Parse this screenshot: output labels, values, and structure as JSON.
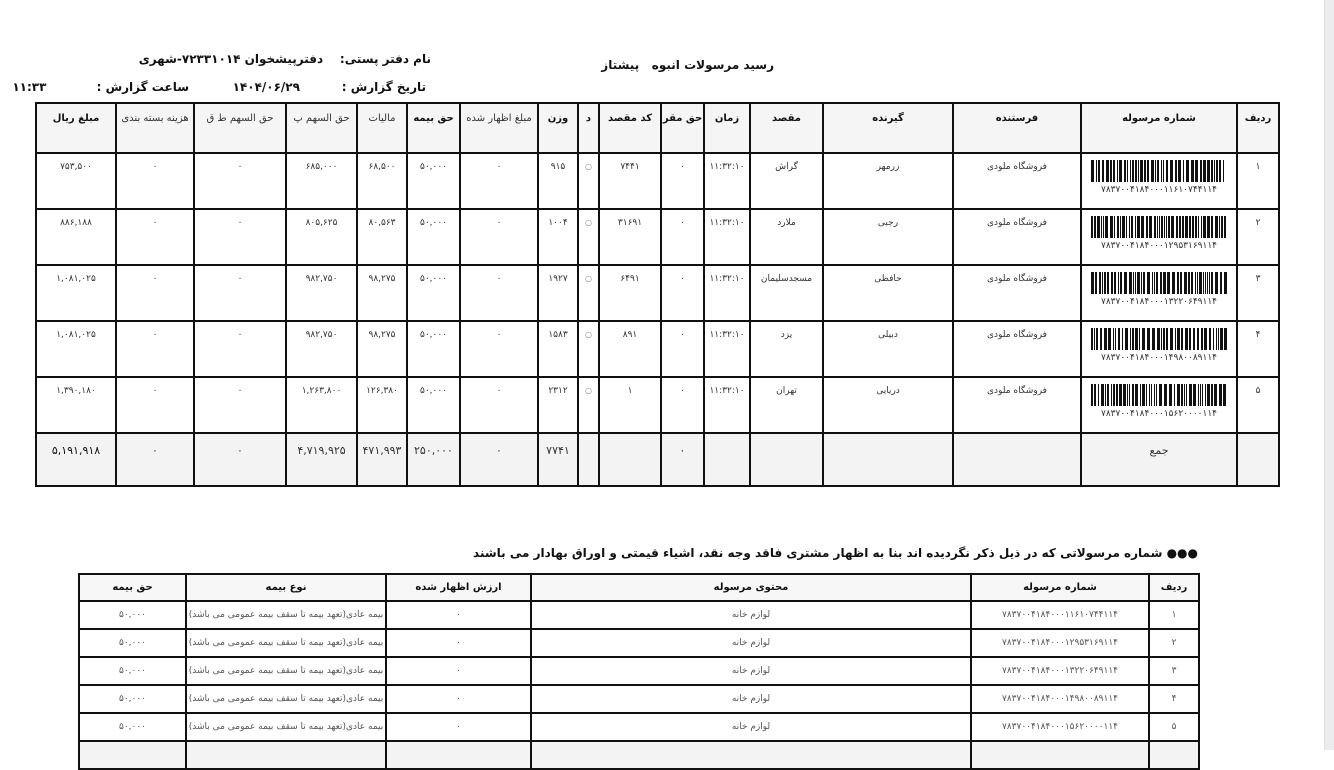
{
  "report": {
    "title": "رسید مرسولات انبوه",
    "service": "پیشتاز",
    "office_label": "نام دفتر پستی:",
    "office_value": "دفترپیشخوان ۷۲۳۳۱۰۱۴-شهری",
    "date_label": "تاریخ گزارش :",
    "date_value": "۱۴۰۴/۰۶/۲۹",
    "time_label": "ساعت گزارش :",
    "time_value": "۱۱:۳۳"
  },
  "table1": {
    "headers": [
      "ردیف",
      "شماره مرسوله",
      "فرستنده",
      "گیرنده",
      "مقصد",
      "زمان",
      "حق مقر",
      "کد مقصد",
      "د",
      "وزن",
      "مبلغ اظهار شده",
      "حق بیمه",
      "مالیات",
      "حق السهم پ",
      "حق السهم ط ق",
      "هزینه بسته بندی",
      "مبلغ ریال"
    ],
    "rows": [
      [
        "۱",
        "۷۸۳۷۰۰۴۱۸۴۰۰۰۱۱۶۱۰۷۴۴۱۱۴",
        "فروشگاه ملودی",
        "زرمهر",
        "گراش",
        "۱۱:۳۲:۱۰",
        "۰",
        "۷۴۴۱",
        "○",
        "۹۱۵",
        "۰",
        "۵۰,۰۰۰",
        "۶۸,۵۰۰",
        "۶۸۵,۰۰۰",
        "۰",
        "۰",
        "۷۵۳,۵۰۰"
      ],
      [
        "۲",
        "۷۸۳۷۰۰۴۱۸۴۰۰۰۱۲۹۵۳۱۶۹۱۱۴",
        "فروشگاه ملودی",
        "رجبی",
        "ملارد",
        "۱۱:۳۲:۱۰",
        "۰",
        "۳۱۶۹۱",
        "○",
        "۱۰۰۴",
        "۰",
        "۵۰,۰۰۰",
        "۸۰,۵۶۳",
        "۸۰۵,۶۲۵",
        "۰",
        "۰",
        "۸۸۶,۱۸۸"
      ],
      [
        "۳",
        "۷۸۳۷۰۰۴۱۸۴۰۰۰۱۳۲۲۰۶۴۹۱۱۴",
        "فروشگاه ملودی",
        "حافظی",
        "مسجدسلیمان",
        "۱۱:۳۲:۱۰",
        "۰",
        "۶۴۹۱",
        "○",
        "۱۹۲۷",
        "۰",
        "۵۰,۰۰۰",
        "۹۸,۲۷۵",
        "۹۸۲,۷۵۰",
        "۰",
        "۰",
        "۱,۰۸۱,۰۲۵"
      ],
      [
        "۴",
        "۷۸۳۷۰۰۴۱۸۴۰۰۰۱۴۹۸۰۰۸۹۱۱۴",
        "فروشگاه ملودی",
        "دبیلی",
        "یزد",
        "۱۱:۳۲:۱۰",
        "۰",
        "۸۹۱",
        "○",
        "۱۵۸۳",
        "۰",
        "۵۰,۰۰۰",
        "۹۸,۲۷۵",
        "۹۸۲,۷۵۰",
        "۰",
        "۰",
        "۱,۰۸۱,۰۲۵"
      ],
      [
        "۵",
        "۷۸۳۷۰۰۴۱۸۴۰۰۰۱۵۶۲۰۰۰۰۱۱۴",
        "فروشگاه ملودی",
        "دریایی",
        "تهران",
        "۱۱:۳۲:۱۰",
        "۰",
        "۱",
        "○",
        "۲۳۱۲",
        "۰",
        "۵۰,۰۰۰",
        "۱۲۶,۳۸۰",
        "۱,۲۶۳,۸۰۰",
        "۰",
        "۰",
        "۱,۳۹۰,۱۸۰"
      ]
    ],
    "total": [
      "",
      "جمع",
      "",
      "",
      "",
      "",
      "۰",
      "",
      "",
      "۷۷۴۱",
      "۰",
      "۲۵۰,۰۰۰",
      "۴۷۱,۹۹۳",
      "۴,۷۱۹,۹۲۵",
      "۰",
      "۰",
      "۵,۱۹۱,۹۱۸"
    ]
  },
  "note": "●●● شماره مرسولاتی که در ذیل ذکر نگردیده اند بنا به اظهار مشتری فاقد وجه نقد، اشیاء قیمتی و اوراق بهادار می باشند",
  "table2": {
    "headers": [
      "ردیف",
      "شماره مرسوله",
      "محتوی مرسوله",
      "ارزش اظهار شده",
      "نوع بیمه",
      "حق بیمه"
    ],
    "rows": [
      [
        "۱",
        "۷۸۳۷۰۰۴۱۸۴۰۰۰۱۱۶۱۰۷۴۴۱۱۴",
        "لوازم خانه",
        "۰",
        "بیمه عادی(تعهد بیمه تا سقف بیمه عمومی می باشد)",
        "۵۰,۰۰۰"
      ],
      [
        "۲",
        "۷۸۳۷۰۰۴۱۸۴۰۰۰۱۲۹۵۳۱۶۹۱۱۴",
        "لوازم خانه",
        "۰",
        "بیمه عادی(تعهد بیمه تا سقف بیمه عمومی می باشد)",
        "۵۰,۰۰۰"
      ],
      [
        "۳",
        "۷۸۳۷۰۰۴۱۸۴۰۰۰۱۳۲۲۰۶۴۹۱۱۴",
        "لوازم خانه",
        "۰",
        "بیمه عادی(تعهد بیمه تا سقف بیمه عمومی می باشد)",
        "۵۰,۰۰۰"
      ],
      [
        "۴",
        "۷۸۳۷۰۰۴۱۸۴۰۰۰۱۴۹۸۰۰۸۹۱۱۴",
        "لوازم خانه",
        "۰",
        "بیمه عادی(تعهد بیمه تا سقف بیمه عمومی می باشد)",
        "۵۰,۰۰۰"
      ],
      [
        "۵",
        "۷۸۳۷۰۰۴۱۸۴۰۰۰۱۵۶۲۰۰۰۰۱۱۴",
        "لوازم خانه",
        "۰",
        "بیمه عادی(تعهد بیمه تا سقف بیمه عمومی می باشد)",
        "۵۰,۰۰۰"
      ]
    ]
  }
}
